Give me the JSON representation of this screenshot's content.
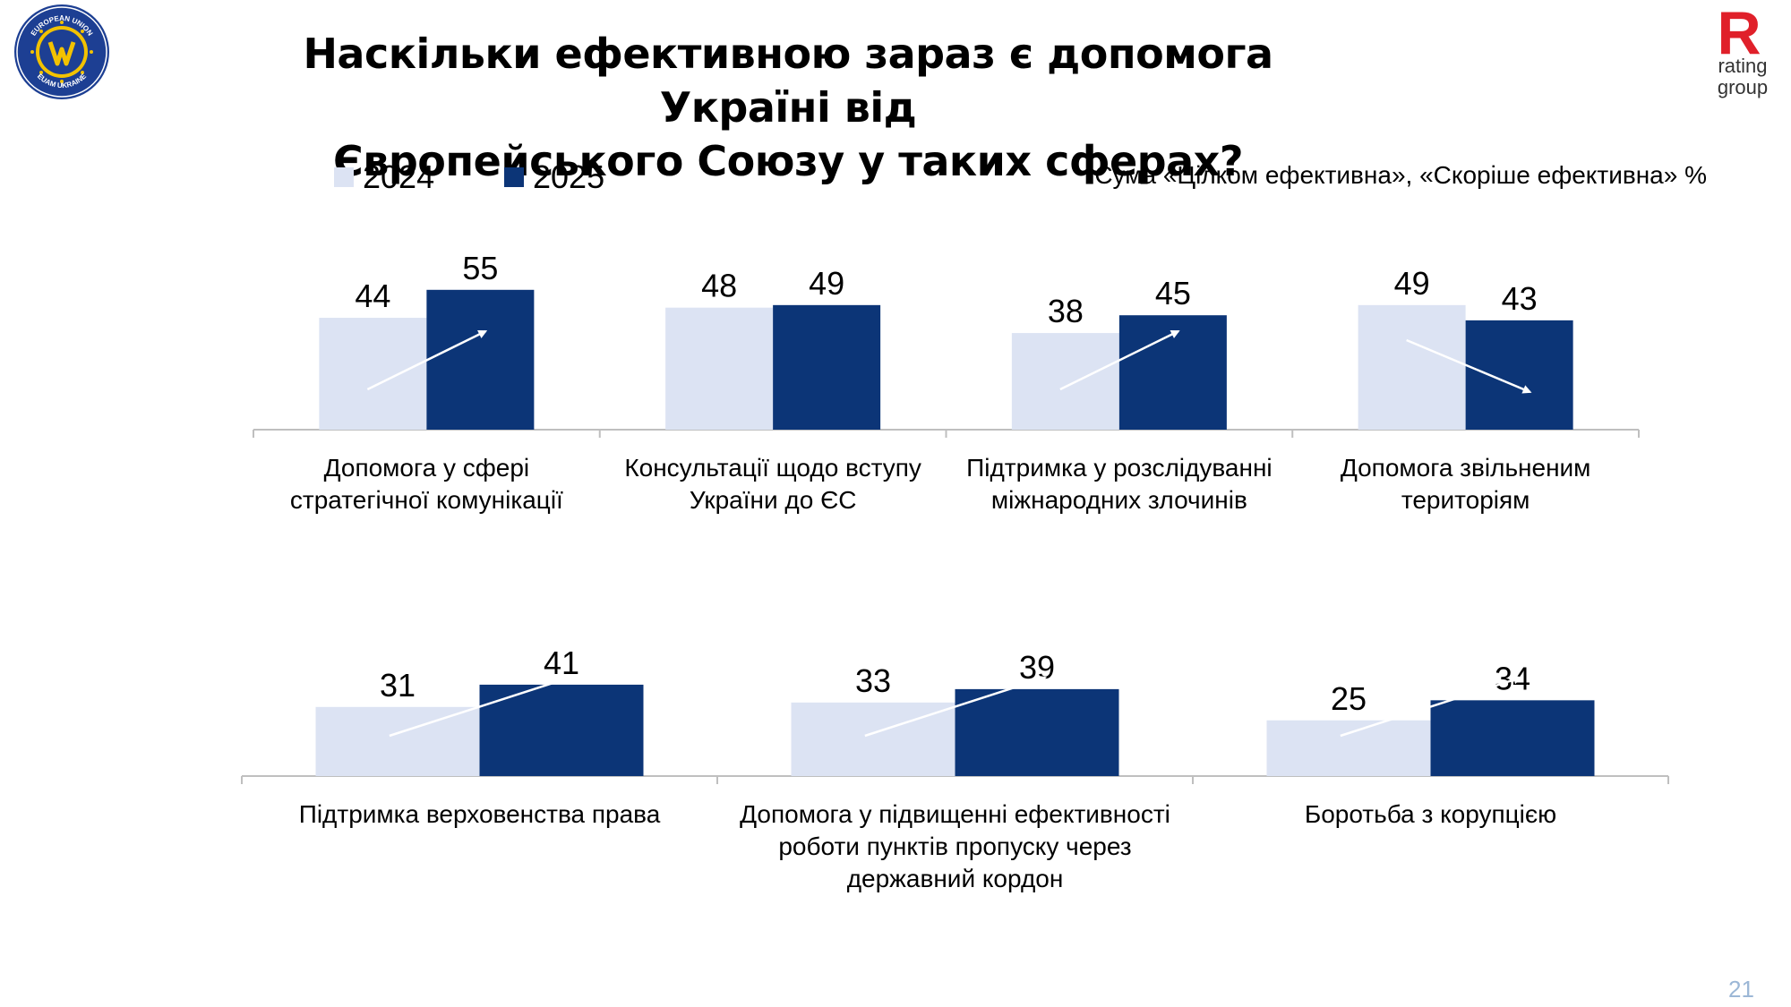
{
  "title_line1": "Наскільки ефективною зараз є допомога Україні від",
  "title_line2": "Європейського Союзу у таких сферах?",
  "subtitle": "Сума «Цілком ефективна», «Скоріше ефективна» %",
  "legend": [
    {
      "label": "2024",
      "color": "#dce3f3"
    },
    {
      "label": "2025",
      "color": "#0c3577"
    }
  ],
  "logos": {
    "left": {
      "top_text": "EUROPEAN UNION",
      "bottom_text": "EUAM UKRAINE"
    },
    "right": {
      "letter": "R",
      "line1": "rating",
      "line2": "group"
    }
  },
  "page_number": "21",
  "chart_data": [
    {
      "type": "bar",
      "title": "Наскільки ефективною зараз є допомога Україні від Європейського Союзу у таких сферах?",
      "categories": [
        [
          "Допомога у сфері",
          "стратегічної комунікації"
        ],
        [
          "Консультації щодо вступу",
          "України до ЄС"
        ],
        [
          "Підтримка у розслідуванні",
          "міжнародних злочинів"
        ],
        [
          "Допомога звільненим",
          "територіям"
        ]
      ],
      "series": [
        {
          "name": "2024",
          "values": [
            44,
            48,
            38,
            49
          ]
        },
        {
          "name": "2025",
          "values": [
            55,
            49,
            45,
            43
          ]
        }
      ],
      "trend": [
        "up",
        "none",
        "up",
        "down"
      ],
      "ylim": [
        0,
        100
      ]
    },
    {
      "type": "bar",
      "categories": [
        [
          "Підтримка верховенства права"
        ],
        [
          "Допомога у підвищенні ефективності",
          "роботи пунктів пропуску через",
          "державний кордон"
        ],
        [
          "Боротьба з корупцією"
        ]
      ],
      "series": [
        {
          "name": "2024",
          "values": [
            31,
            33,
            25
          ]
        },
        {
          "name": "2025",
          "values": [
            41,
            39,
            34
          ]
        }
      ],
      "trend": [
        "up",
        "up",
        "up"
      ],
      "ylim": [
        0,
        100
      ]
    }
  ]
}
